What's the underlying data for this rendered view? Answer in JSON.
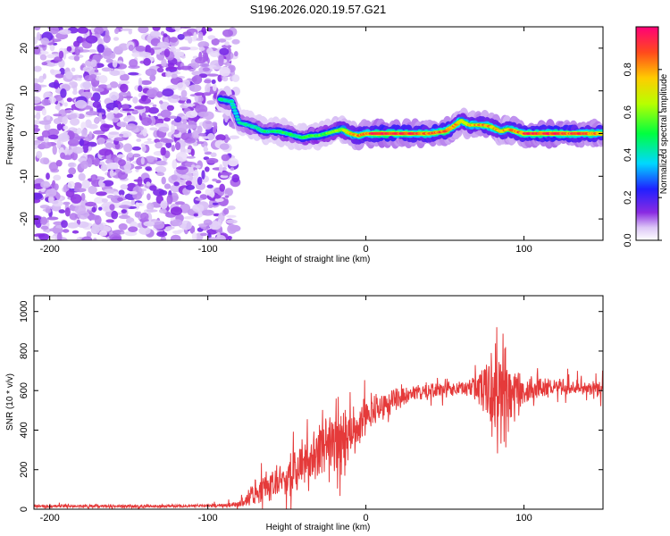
{
  "title": "S196.2026.020.19.57.G21",
  "chart_data": [
    {
      "type": "heatmap",
      "panel": "spectrogram",
      "xlabel": "Height of straight line (km)",
      "ylabel": "Frequency (Hz)",
      "xlim": [
        -210,
        150
      ],
      "ylim": [
        -25,
        25
      ],
      "xticks": [
        {
          "value": -200,
          "label": "-200"
        },
        {
          "value": -100,
          "label": "-100"
        },
        {
          "value": 0,
          "label": "0"
        },
        {
          "value": 100,
          "label": "100"
        }
      ],
      "yticks": [
        {
          "value": -20,
          "label": "-20"
        },
        {
          "value": -10,
          "label": "-10"
        },
        {
          "value": 0,
          "label": "0"
        },
        {
          "value": 10,
          "label": "10"
        },
        {
          "value": 20,
          "label": "20"
        }
      ],
      "colorbar": {
        "label": "Normalized spectral amplitude",
        "range": [
          0,
          1
        ],
        "ticks": [
          {
            "value": 0.0,
            "label": "0.0"
          },
          {
            "value": 0.2,
            "label": "0.2"
          },
          {
            "value": 0.4,
            "label": "0.4"
          },
          {
            "value": 0.6,
            "label": "0.6"
          },
          {
            "value": 0.8,
            "label": "0.8"
          }
        ]
      },
      "noise_region_x": [
        -210,
        -82
      ],
      "ridge": {
        "x": [
          -92,
          -85,
          -80,
          -75,
          -70,
          -65,
          -60,
          -55,
          -50,
          -45,
          -40,
          -35,
          -30,
          -25,
          -20,
          -15,
          -10,
          -5,
          0,
          10,
          20,
          30,
          40,
          50,
          55,
          60,
          65,
          70,
          75,
          80,
          85,
          90,
          95,
          100,
          110,
          120,
          130,
          140,
          150
        ],
        "freq": [
          8,
          7.5,
          2.5,
          2,
          1.5,
          0.5,
          0.5,
          0.5,
          0,
          -0.5,
          -1,
          -0.5,
          -0.5,
          0,
          0.5,
          1,
          0,
          -0.5,
          0,
          0,
          0,
          0,
          0,
          0.5,
          1.5,
          3,
          2,
          2,
          2,
          1.5,
          0.5,
          1,
          0.5,
          0,
          0,
          0,
          0,
          0,
          0
        ],
        "amp": [
          0.5,
          0.45,
          0.4,
          0.45,
          0.45,
          0.5,
          0.45,
          0.5,
          0.5,
          0.5,
          0.5,
          0.55,
          0.55,
          0.55,
          0.6,
          0.65,
          0.75,
          0.8,
          0.85,
          0.95,
          0.95,
          0.9,
          0.85,
          0.9,
          0.8,
          0.75,
          0.75,
          0.8,
          0.85,
          0.8,
          0.75,
          0.8,
          0.85,
          0.9,
          0.95,
          0.95,
          0.9,
          0.9,
          0.85
        ]
      }
    },
    {
      "type": "line",
      "panel": "snr",
      "xlabel": "Height of straight line (km)",
      "ylabel": "SNR (10 * v/v)",
      "xlim": [
        -210,
        150
      ],
      "ylim": [
        0,
        1080
      ],
      "xticks": [
        {
          "value": -200,
          "label": "-200"
        },
        {
          "value": -100,
          "label": "-100"
        },
        {
          "value": 0,
          "label": "0"
        },
        {
          "value": 100,
          "label": "100"
        }
      ],
      "yticks": [
        {
          "value": 0,
          "label": "0"
        },
        {
          "value": 200,
          "label": "200"
        },
        {
          "value": 400,
          "label": "400"
        },
        {
          "value": 600,
          "label": "600"
        },
        {
          "value": 800,
          "label": "800"
        },
        {
          "value": 1000,
          "label": "1000"
        }
      ],
      "series": [
        {
          "name": "SNR",
          "color": "#e53a3a",
          "x": [
            -210,
            -180,
            -150,
            -120,
            -100,
            -90,
            -80,
            -75,
            -70,
            -65,
            -60,
            -55,
            -50,
            -45,
            -40,
            -35,
            -30,
            -25,
            -20,
            -15,
            -10,
            -5,
            0,
            10,
            20,
            30,
            40,
            50,
            60,
            65,
            70,
            75,
            80,
            85,
            90,
            95,
            100,
            110,
            120,
            130,
            140,
            150
          ],
          "mean": [
            15,
            15,
            15,
            15,
            18,
            20,
            25,
            50,
            90,
            110,
            120,
            140,
            170,
            190,
            220,
            250,
            280,
            300,
            320,
            340,
            370,
            420,
            470,
            520,
            560,
            590,
            600,
            610,
            610,
            620,
            620,
            620,
            600,
            580,
            580,
            590,
            600,
            610,
            620,
            620,
            620,
            600
          ],
          "noise": [
            8,
            8,
            8,
            8,
            8,
            10,
            15,
            40,
            60,
            70,
            80,
            90,
            110,
            120,
            130,
            140,
            150,
            150,
            150,
            140,
            130,
            110,
            90,
            70,
            50,
            40,
            40,
            40,
            40,
            50,
            70,
            130,
            250,
            330,
            250,
            120,
            70,
            50,
            40,
            40,
            40,
            40
          ]
        }
      ]
    }
  ]
}
